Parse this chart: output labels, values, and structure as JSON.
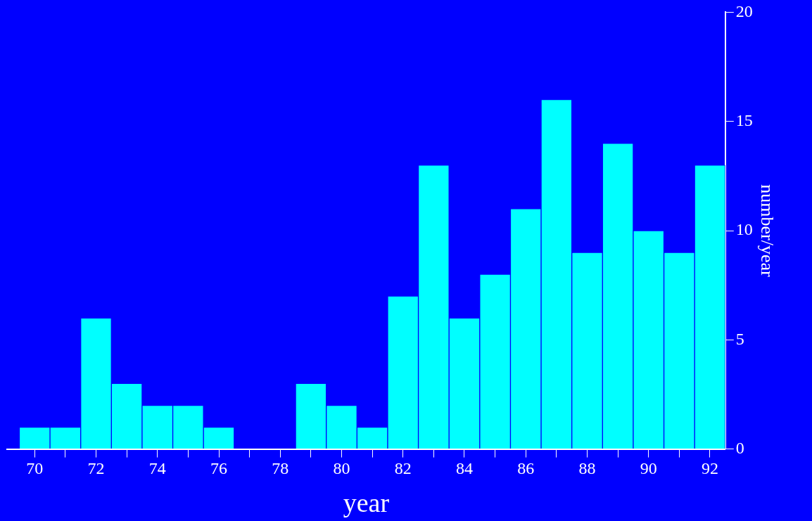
{
  "chart_data": {
    "type": "histogram",
    "xlabel": "year",
    "ylabel": "number/year",
    "bins": [
      69.5,
      70.5,
      71.5,
      72.5,
      73.5,
      74.5,
      75.5,
      76.5,
      77.5,
      78.5,
      79.5,
      80.5,
      81.5,
      82.5,
      83.5,
      84.5,
      85.5,
      86.5,
      87.5,
      88.5,
      89.5,
      90.5,
      91.5,
      92.5
    ],
    "values": [
      1,
      1,
      6,
      3,
      2,
      2,
      1,
      0,
      0,
      3,
      2,
      1,
      7,
      13,
      6,
      8,
      11,
      16,
      9,
      14,
      10,
      9,
      13
    ],
    "color": "#00ffff",
    "xlim": [
      69.1,
      92.5
    ],
    "xticks": [
      70,
      {
        "value": 71,
        "label": null
      },
      72,
      {
        "value": 73,
        "label": null
      },
      74,
      {
        "value": 75,
        "label": null
      },
      76,
      {
        "value": 77,
        "label": null
      },
      78,
      {
        "value": 79,
        "label": null
      },
      80,
      {
        "value": 81,
        "label": null
      },
      82,
      {
        "value": 83,
        "label": null
      },
      84,
      {
        "value": 85,
        "label": null
      },
      86,
      {
        "value": 87,
        "label": null
      },
      88,
      {
        "value": 89,
        "label": null
      },
      90,
      {
        "value": 91,
        "label": null
      },
      92
    ],
    "ylim": [
      0,
      20
    ],
    "yticks": [
      0,
      5,
      10,
      15,
      20
    ],
    "grid": false,
    "legend": false
  }
}
